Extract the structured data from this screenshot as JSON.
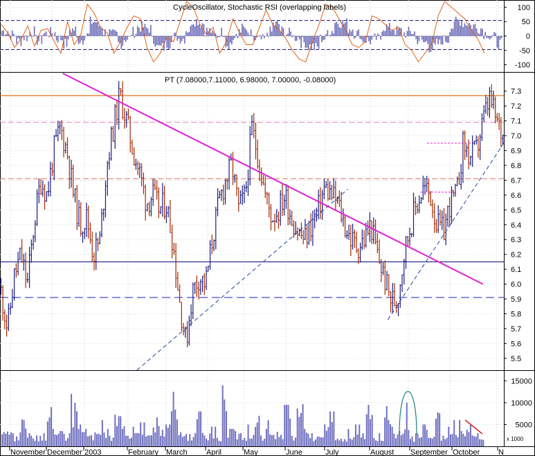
{
  "chart_data": [
    {
      "type": "histogram-oscillator",
      "panel": "oscillator",
      "title": "CycleOscillator, Stochastic RSI (overlapping labels)",
      "title_color": "#000000",
      "ylim": [
        -125,
        125
      ],
      "yticks": [
        100,
        50,
        0,
        -50,
        -100
      ],
      "reference_lines": [
        54,
        -47
      ],
      "series": [
        {
          "name": "Histogram",
          "color": "#6a6ab8",
          "style": "bars"
        },
        {
          "name": "Stochastic RSI",
          "color": "#e06018",
          "style": "line",
          "values": [
            40,
            10,
            -40,
            -10,
            35,
            -35,
            20,
            25,
            -20,
            -60,
            50,
            -30,
            5,
            110,
            80,
            30,
            10,
            -60,
            -20,
            30,
            70,
            60,
            -40,
            -90,
            -60,
            -5,
            -20,
            50,
            120,
            100,
            40,
            5,
            30,
            -60,
            -20,
            60,
            10,
            -30,
            -30,
            30,
            90,
            40,
            20,
            -10,
            -50,
            -80,
            -90,
            -20,
            40,
            110,
            100,
            60,
            20,
            -30,
            -40,
            -20,
            70,
            60,
            40,
            20,
            30,
            -30,
            -50,
            -90,
            -60,
            -30,
            70,
            120,
            100,
            80,
            60,
            20,
            -10,
            -60
          ]
        }
      ]
    },
    {
      "type": "ohlc",
      "panel": "price",
      "title": "PT (7.08000,7.11000, 6.98000, 7.00000, -0.08000)",
      "ylim": [
        5.42,
        7.42
      ],
      "yticks": [
        7.3,
        7.2,
        7.1,
        7.0,
        6.9,
        6.8,
        6.7,
        6.6,
        6.5,
        6.4,
        6.3,
        6.2,
        6.1,
        6.0,
        5.9,
        5.8,
        5.7,
        5.6,
        5.5
      ],
      "xlim": [
        0,
        265
      ],
      "series": [
        {
          "name": "PT",
          "up_color": "#1a1a80",
          "down_color": "#a02800",
          "close": [
            5.95,
            5.7,
            6.05,
            6.2,
            6.0,
            6.4,
            6.7,
            6.6,
            6.9,
            7.05,
            6.9,
            6.6,
            6.4,
            6.45,
            6.2,
            6.3,
            6.8,
            7.05,
            7.28,
            7.1,
            6.9,
            6.75,
            6.55,
            6.6,
            6.5,
            6.55,
            6.3,
            5.9,
            5.6,
            5.95,
            6.05,
            6.0,
            6.3,
            6.55,
            6.7,
            6.8,
            6.5,
            6.6,
            7.05,
            6.85,
            6.6,
            6.45,
            6.5,
            6.6,
            6.45,
            6.35,
            6.3,
            6.4,
            6.5,
            6.65,
            6.6,
            6.55,
            6.4,
            6.3,
            6.25,
            6.3,
            6.4,
            6.2,
            6.05,
            5.9,
            5.88,
            6.2,
            6.4,
            6.55,
            6.65,
            6.6,
            6.4,
            6.35,
            6.55,
            6.6,
            6.95,
            6.85,
            6.9,
            7.1,
            7.25,
            7.1,
            7.0
          ]
        }
      ],
      "horizontal_lines": [
        {
          "y": 7.27,
          "color": "#e06000",
          "style": "solid"
        },
        {
          "y": 7.09,
          "color": "#e080c0",
          "style": "dashed"
        },
        {
          "y": 6.71,
          "color": "#e07060",
          "style": "dashed"
        },
        {
          "y": 6.15,
          "color": "#1a1a80",
          "style": "solid"
        },
        {
          "y": 5.91,
          "color": "#2020c0",
          "style": "dashed"
        }
      ],
      "trend_lines": [
        {
          "from": [
            33,
            7.42
          ],
          "to": [
            254,
            6.0
          ],
          "color": "#e020d0",
          "style": "solid"
        },
        {
          "from": [
            72,
            5.42
          ],
          "to": [
            183,
            6.64
          ],
          "color": "#2040a0",
          "style": "dashed"
        },
        {
          "from": [
            204,
            5.76
          ],
          "to": [
            266,
            6.97
          ],
          "color": "#2040a0",
          "style": "dashed"
        }
      ]
    },
    {
      "type": "bar",
      "panel": "volume",
      "ylim": [
        0,
        16500
      ],
      "yticks": [
        15000,
        10000,
        5000
      ],
      "unit_label": "x 1000",
      "color": "#7070c0",
      "x_labels": [
        "November",
        "December",
        "2003",
        "February",
        "March",
        "April",
        "May",
        "June",
        "July",
        "August",
        "September",
        "October",
        "N"
      ],
      "values": [
        6000,
        4500,
        3200,
        8000,
        5000,
        2500,
        3000,
        9000,
        4000,
        3500,
        3000,
        12000,
        5000,
        4000,
        3200,
        6000,
        4000,
        3000,
        10000,
        6500,
        4500,
        3000,
        5500,
        2500,
        9000,
        3800,
        5000,
        12500,
        4200,
        3500,
        3000,
        8000,
        2500,
        4500,
        3000,
        14000,
        4000,
        3500,
        3000,
        5000,
        7000,
        2500,
        6000,
        4000,
        3500,
        9500,
        3500,
        16500,
        4000,
        3000,
        2800,
        5000,
        8000,
        3000,
        2500,
        4000,
        5000,
        3000,
        9500,
        2800,
        3000,
        11500,
        4500,
        3500,
        10000,
        3000,
        3800,
        5000,
        4000,
        10500,
        3000,
        4500,
        6000,
        3500,
        5000,
        3000,
        2000
      ]
    }
  ]
}
